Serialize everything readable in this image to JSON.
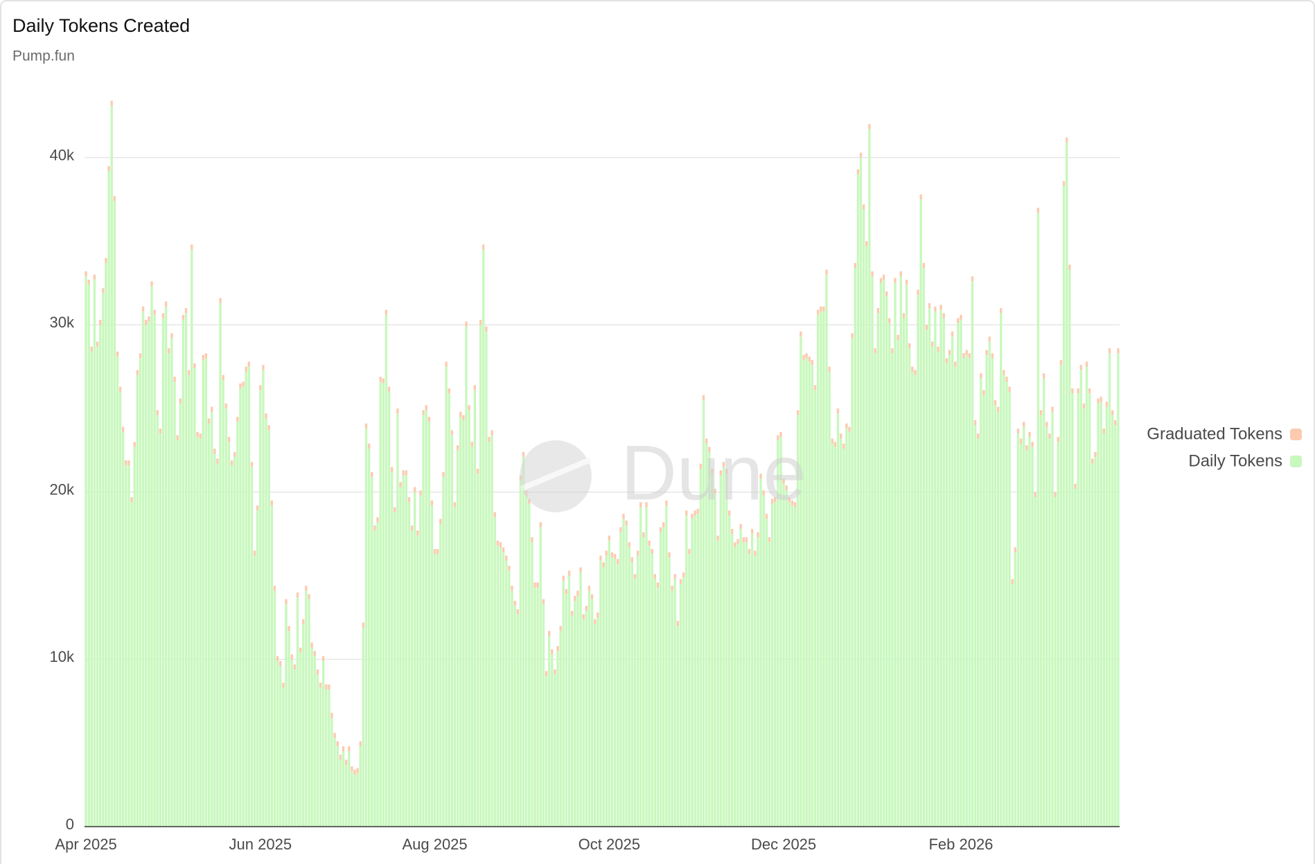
{
  "chart_data": {
    "type": "stacked-bar",
    "title": "Daily Tokens Created",
    "subtitle": "Pump.fun",
    "watermark": "Dune",
    "ylim": [
      0,
      44000
    ],
    "yticks": [
      0,
      {
        "value": 10000,
        "label": "10k"
      },
      {
        "value": 20000,
        "label": "20k"
      },
      {
        "value": 30000,
        "label": "30k"
      },
      {
        "value": 40000,
        "label": "40k"
      }
    ],
    "grid": true,
    "legend": "right",
    "categories": [
      "Apr 2025",
      null,
      null,
      null,
      null,
      null,
      null,
      null,
      null,
      null,
      null,
      null,
      null,
      null,
      null,
      null,
      null,
      null,
      null,
      null,
      null,
      null,
      null,
      null,
      null,
      null,
      null,
      null,
      null,
      null,
      null,
      null,
      null,
      null,
      null,
      null,
      null,
      null,
      null,
      null,
      null,
      null,
      null,
      null,
      null,
      null,
      null,
      null,
      null,
      null,
      null,
      null,
      null,
      null,
      null,
      null,
      null,
      null,
      null,
      null,
      null,
      "Jun 2025",
      null,
      null,
      null,
      null,
      null,
      null,
      null,
      null,
      null,
      null,
      null,
      null,
      null,
      null,
      null,
      null,
      null,
      null,
      null,
      null,
      null,
      null,
      null,
      null,
      null,
      null,
      null,
      null,
      null,
      null,
      null,
      null,
      null,
      null,
      null,
      null,
      null,
      null,
      null,
      null,
      null,
      null,
      null,
      null,
      null,
      null,
      null,
      null,
      null,
      null,
      null,
      null,
      null,
      null,
      null,
      null,
      null,
      null,
      null,
      null,
      "Aug 2025",
      null,
      null,
      null,
      null,
      null,
      null,
      null,
      null,
      null,
      null,
      null,
      null,
      null,
      null,
      null,
      null,
      null,
      null,
      null,
      null,
      null,
      null,
      null,
      null,
      null,
      null,
      null,
      null,
      null,
      null,
      null,
      null,
      null,
      null,
      null,
      null,
      null,
      null,
      null,
      null,
      null,
      null,
      null,
      null,
      null,
      null,
      null,
      null,
      null,
      null,
      null,
      null,
      null,
      null,
      null,
      null,
      null,
      null,
      null,
      null,
      "Oct 2025",
      null,
      null,
      null,
      null,
      null,
      null,
      null,
      null,
      null,
      null,
      null,
      null,
      null,
      null,
      null,
      null,
      null,
      null,
      null,
      null,
      null,
      null,
      null,
      null,
      null,
      null,
      null,
      null,
      null,
      null,
      null,
      null,
      null,
      null,
      null,
      null,
      null,
      null,
      null,
      null,
      null,
      null,
      null,
      null,
      null,
      null,
      null,
      null,
      null,
      null,
      null,
      null,
      null,
      null,
      null,
      null,
      null,
      null,
      null,
      null,
      "Dec 2025",
      null,
      null,
      null,
      null,
      null,
      null,
      null,
      null,
      null,
      null,
      null,
      null,
      null,
      null,
      null,
      null,
      null,
      null,
      null,
      null,
      null,
      null,
      null,
      null,
      null,
      null,
      null,
      null,
      null,
      null,
      null,
      null,
      null,
      null,
      null,
      null,
      null,
      null,
      null,
      null,
      null,
      null,
      null,
      null,
      null,
      null,
      null,
      null,
      null,
      null,
      null,
      null,
      null,
      null,
      null,
      null,
      null,
      null,
      null,
      null,
      null,
      "Feb 2026",
      null,
      null,
      null,
      null,
      null,
      null,
      null,
      null,
      null,
      null,
      null,
      null,
      null,
      null,
      null,
      null,
      null,
      null,
      null,
      null,
      null,
      null,
      null,
      null,
      null,
      null,
      null,
      null,
      null,
      null,
      null,
      null,
      null,
      null,
      null,
      null,
      null,
      null,
      null,
      null,
      null,
      null,
      null,
      null,
      null,
      null,
      null,
      null,
      null,
      null,
      null,
      null,
      null,
      null,
      null
    ],
    "series": [
      {
        "name": "Graduated Tokens",
        "color": "#fbcbb0",
        "values": [
          300,
          300,
          300,
          300,
          300,
          300,
          300,
          300,
          300,
          300,
          300,
          300,
          300,
          300,
          300,
          300,
          300,
          300,
          300,
          300,
          300,
          300,
          300,
          300,
          300,
          300,
          300,
          300,
          300,
          300,
          300,
          300,
          300,
          300,
          300,
          300,
          300,
          300,
          300,
          300,
          300,
          300,
          300,
          300,
          300,
          300,
          300,
          300,
          300,
          300,
          300,
          300,
          300,
          300,
          300,
          300,
          300,
          300,
          300,
          300,
          300,
          300,
          300,
          300,
          300,
          300,
          300,
          300,
          300,
          300,
          300,
          300,
          300,
          300,
          300,
          300,
          300,
          300,
          300,
          300,
          300,
          300,
          300,
          300,
          300,
          300,
          300,
          300,
          300,
          300,
          300,
          300,
          300,
          300,
          300,
          300,
          300,
          300,
          300,
          300,
          300,
          300,
          300,
          300,
          300,
          300,
          300,
          300,
          300,
          300,
          300,
          300,
          300,
          300,
          300,
          300,
          300,
          300,
          300,
          300,
          300,
          300,
          300,
          300,
          300,
          300,
          300,
          300,
          300,
          300,
          300,
          300,
          300,
          300,
          300,
          300,
          300,
          300,
          300,
          300,
          300,
          300,
          300,
          300,
          300,
          300,
          300,
          300,
          300,
          300,
          300,
          300,
          300,
          300,
          300,
          300,
          300,
          300,
          300,
          300,
          300,
          300,
          300,
          300,
          300,
          300,
          300,
          300,
          300,
          300,
          300,
          300,
          300,
          300,
          300,
          300,
          300,
          300,
          300,
          300,
          300,
          300,
          300,
          300,
          300,
          300,
          300,
          300,
          300,
          300,
          300,
          300,
          300,
          300,
          300,
          300,
          300,
          300,
          300,
          300,
          300,
          300,
          300,
          300,
          300,
          300,
          300,
          300,
          300,
          300,
          300,
          300,
          300,
          300,
          300,
          300,
          300,
          300,
          300,
          300,
          300,
          300,
          300,
          300,
          300,
          300,
          300,
          300,
          300,
          300,
          300,
          300,
          300,
          300,
          300,
          300,
          300,
          300,
          300,
          300,
          300,
          300,
          300,
          300,
          300,
          300,
          300,
          300,
          300,
          300,
          300,
          300,
          300,
          300,
          300,
          300,
          300,
          300,
          300,
          300,
          300,
          300,
          300,
          300,
          300,
          300,
          300,
          300,
          300,
          300,
          300,
          300,
          300,
          300,
          300,
          300,
          300,
          300,
          300,
          300,
          300,
          300,
          300,
          300,
          300,
          300,
          300,
          300,
          300,
          300,
          300,
          300,
          300,
          300,
          300,
          300,
          300,
          300,
          300,
          300,
          300,
          300,
          300,
          300,
          300,
          300,
          300,
          300,
          300,
          300,
          300,
          300,
          300,
          300,
          300,
          300,
          300,
          300,
          300,
          300,
          300,
          300,
          300,
          300,
          300,
          300,
          300,
          300,
          300,
          300,
          300,
          300,
          300,
          300,
          300,
          300,
          300,
          300,
          300,
          300,
          300,
          300,
          300,
          300,
          300,
          300,
          300,
          300,
          300,
          300,
          300,
          300,
          300,
          300,
          300,
          300,
          300,
          300,
          300,
          300,
          300,
          300
        ]
      },
      {
        "name": "Daily Tokens",
        "color": "#c8f8bd",
        "values": [
          32900,
          32400,
          28400,
          32700,
          28700,
          30000,
          31900,
          33700,
          39200,
          43100,
          37400,
          28100,
          26000,
          23600,
          21600,
          21600,
          19400,
          22700,
          27000,
          28000,
          30800,
          30000,
          30200,
          32300,
          30600,
          24600,
          23500,
          30400,
          31100,
          28300,
          29200,
          26600,
          23100,
          25300,
          30300,
          30700,
          27000,
          34500,
          27400,
          23300,
          23200,
          27900,
          28000,
          24100,
          24800,
          22300,
          21700,
          31300,
          26700,
          25000,
          23000,
          21600,
          22100,
          24200,
          26200,
          26300,
          27200,
          27500,
          21500,
          16200,
          18900,
          26100,
          27300,
          24400,
          23700,
          19200,
          14100,
          9900,
          9600,
          8300,
          13300,
          11700,
          10000,
          9400,
          13700,
          10400,
          12100,
          14100,
          13600,
          10700,
          10200,
          9100,
          8300,
          9900,
          8200,
          8200,
          6500,
          5300,
          4800,
          4000,
          4500,
          3700,
          4500,
          3300,
          3100,
          3200,
          4800,
          11900,
          23800,
          22600,
          20900,
          17700,
          18200,
          26600,
          26500,
          30600,
          26000,
          21200,
          18800,
          24700,
          20300,
          21000,
          21000,
          19400,
          17700,
          20000,
          17400,
          19800,
          24600,
          24900,
          24200,
          19200,
          16300,
          16300,
          18100,
          20900,
          27500,
          25900,
          23400,
          19100,
          22500,
          24500,
          24300,
          29900,
          24900,
          22700,
          26100,
          21100,
          30000,
          34500,
          29600,
          23000,
          23400,
          18500,
          16800,
          16700,
          16400,
          15900,
          15300,
          14100,
          13200,
          12700,
          20700,
          22100,
          19800,
          19300,
          17000,
          14300,
          14300,
          17900,
          13300,
          9000,
          11400,
          10300,
          9100,
          10500,
          11700,
          14700,
          13900,
          15000,
          12600,
          13500,
          13800,
          15200,
          12400,
          12900,
          14100,
          13600,
          12100,
          12500,
          15900,
          15500,
          16200,
          17100,
          16100,
          16000,
          15700,
          17600,
          18400,
          18000,
          16700,
          15800,
          14800,
          16200,
          19100,
          17300,
          19100,
          16800,
          16300,
          14800,
          14300,
          17600,
          17900,
          19200,
          16100,
          14100,
          14800,
          12000,
          14500,
          14900,
          18600,
          16300,
          18400,
          18600,
          18700,
          21400,
          25500,
          22900,
          22400,
          21100,
          19900,
          17100,
          21000,
          21500,
          21100,
          18600,
          17500,
          16700,
          16900,
          17800,
          17000,
          17000,
          16300,
          17500,
          16200,
          17300,
          20800,
          19800,
          18400,
          17000,
          19300,
          19400,
          23100,
          23300,
          20500,
          20100,
          19400,
          19200,
          19100,
          24600,
          29300,
          27900,
          28000,
          27800,
          27600,
          26100,
          30600,
          30800,
          30800,
          33000,
          27200,
          22900,
          22700,
          24700,
          23200,
          22600,
          23800,
          23600,
          29200,
          33400,
          39000,
          40000,
          36900,
          34700,
          41700,
          32900,
          28300,
          30700,
          32500,
          32700,
          31700,
          30100,
          28300,
          32500,
          29100,
          32900,
          30400,
          32400,
          28600,
          27200,
          27000,
          31800,
          37500,
          33400,
          29700,
          31000,
          28700,
          30800,
          28400,
          30900,
          30400,
          27700,
          28200,
          29300,
          27500,
          30100,
          30300,
          28000,
          28200,
          28000,
          32600,
          24000,
          23200,
          26800,
          25800,
          28200,
          29000,
          28000,
          25200,
          24800,
          30700,
          27000,
          26600,
          26000,
          14500,
          16400,
          23500,
          22900,
          23900,
          22500,
          23300,
          22700,
          19700,
          36700,
          24600,
          26800,
          23900,
          23200,
          24800,
          19700,
          23000,
          27600,
          38300,
          40900,
          33300,
          25900,
          20200,
          25900,
          27300,
          25000,
          27500,
          25900,
          21700,
          22100,
          25300,
          25400,
          23500,
          25100,
          28300,
          24600,
          24000,
          28300
        ]
      }
    ]
  }
}
